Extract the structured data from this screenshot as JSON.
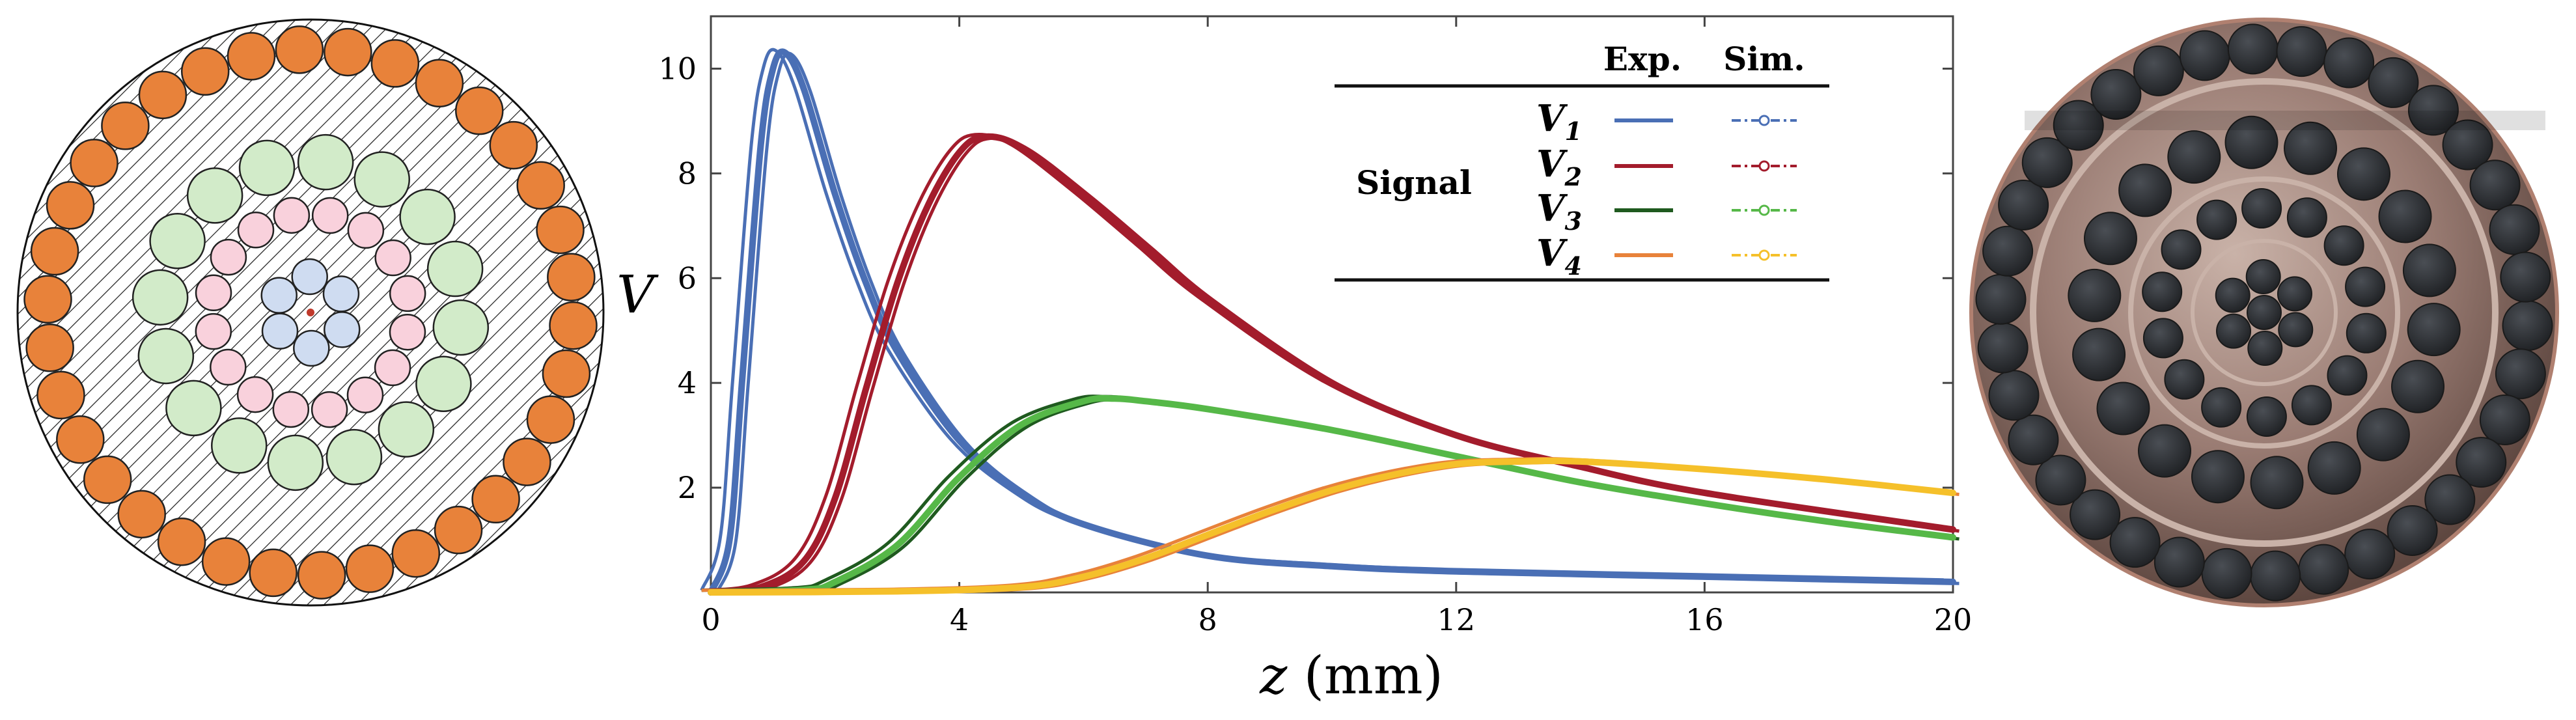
{
  "chart_data": {
    "type": "line",
    "title": "",
    "xlabel_var": "z",
    "xlabel_unit": "(mm)",
    "ylabel": "V",
    "xlim": [
      0,
      20
    ],
    "ylim": [
      0,
      11
    ],
    "xticks": [
      0,
      4,
      8,
      12,
      16,
      20
    ],
    "yticks": [
      2,
      4,
      6,
      8,
      10
    ],
    "grid": false,
    "legend": {
      "placement": "top-right",
      "col_exp": "Exp.",
      "col_sim": "Sim.",
      "row_group": "Signal",
      "entries": [
        "V1",
        "V2",
        "V3",
        "V4"
      ]
    },
    "series": [
      {
        "name": "V1",
        "label_main": "V",
        "label_sub": "1",
        "exp_color": "#4a6fb5",
        "sim_color": "#4a6fb5",
        "x": [
          0,
          0.3,
          0.5,
          0.8,
          1.0,
          1.2,
          1.5,
          2.0,
          2.5,
          3.0,
          4.0,
          5.0,
          6.0,
          8.0,
          10.0,
          12.0,
          16.0,
          20.0
        ],
        "y": [
          0,
          1.0,
          4.0,
          8.5,
          10.0,
          10.3,
          9.6,
          7.6,
          5.9,
          4.6,
          2.9,
          1.9,
          1.3,
          0.7,
          0.5,
          0.4,
          0.3,
          0.2
        ]
      },
      {
        "name": "V2",
        "label_main": "V",
        "label_sub": "2",
        "exp_color": "#a31c2c",
        "sim_color": "#a31c2c",
        "x": [
          0,
          0.8,
          1.5,
          2.0,
          2.5,
          3.0,
          3.5,
          4.0,
          4.4,
          5.0,
          6.0,
          7.0,
          8.0,
          10.0,
          12.0,
          14.0,
          16.0,
          20.0
        ],
        "y": [
          0,
          0.1,
          0.6,
          1.8,
          3.9,
          5.9,
          7.4,
          8.4,
          8.7,
          8.5,
          7.6,
          6.6,
          5.6,
          4.0,
          3.0,
          2.4,
          1.9,
          1.2
        ]
      },
      {
        "name": "V3",
        "label_main": "V",
        "label_sub": "3",
        "exp_color": "#1f5a1f",
        "sim_color": "#56b848",
        "x": [
          0,
          1.5,
          2.0,
          3.0,
          4.0,
          5.0,
          6.0,
          6.5,
          7.0,
          8.0,
          10.0,
          12.0,
          14.0,
          16.0,
          18.0,
          20.0
        ],
        "y": [
          0,
          0.05,
          0.2,
          0.9,
          2.2,
          3.2,
          3.65,
          3.7,
          3.65,
          3.5,
          3.1,
          2.6,
          2.1,
          1.7,
          1.35,
          1.05
        ]
      },
      {
        "name": "V4",
        "label_main": "V",
        "label_sub": "4",
        "exp_color": "#e8823a",
        "sim_color": "#f5c02a",
        "x": [
          0,
          3.0,
          5.0,
          6.0,
          7.0,
          8.0,
          9.0,
          10.0,
          11.0,
          12.0,
          13.0,
          14.0,
          16.0,
          18.0,
          20.0
        ],
        "y": [
          0,
          0.02,
          0.1,
          0.3,
          0.65,
          1.1,
          1.55,
          1.95,
          2.25,
          2.45,
          2.5,
          2.5,
          2.35,
          2.15,
          1.9
        ]
      }
    ]
  },
  "schematic": {
    "ring_colors": {
      "outer": "#e8823a",
      "green": "#d2ebc9",
      "pink": "#f9d1dc",
      "blue": "#cfdcf1",
      "center": "#c0392b"
    }
  },
  "photo": {
    "colors": {
      "rim": "#b08070",
      "metal": "#8a6e66",
      "hole": "#2e3135",
      "highlight": "#c9b2a8"
    }
  }
}
